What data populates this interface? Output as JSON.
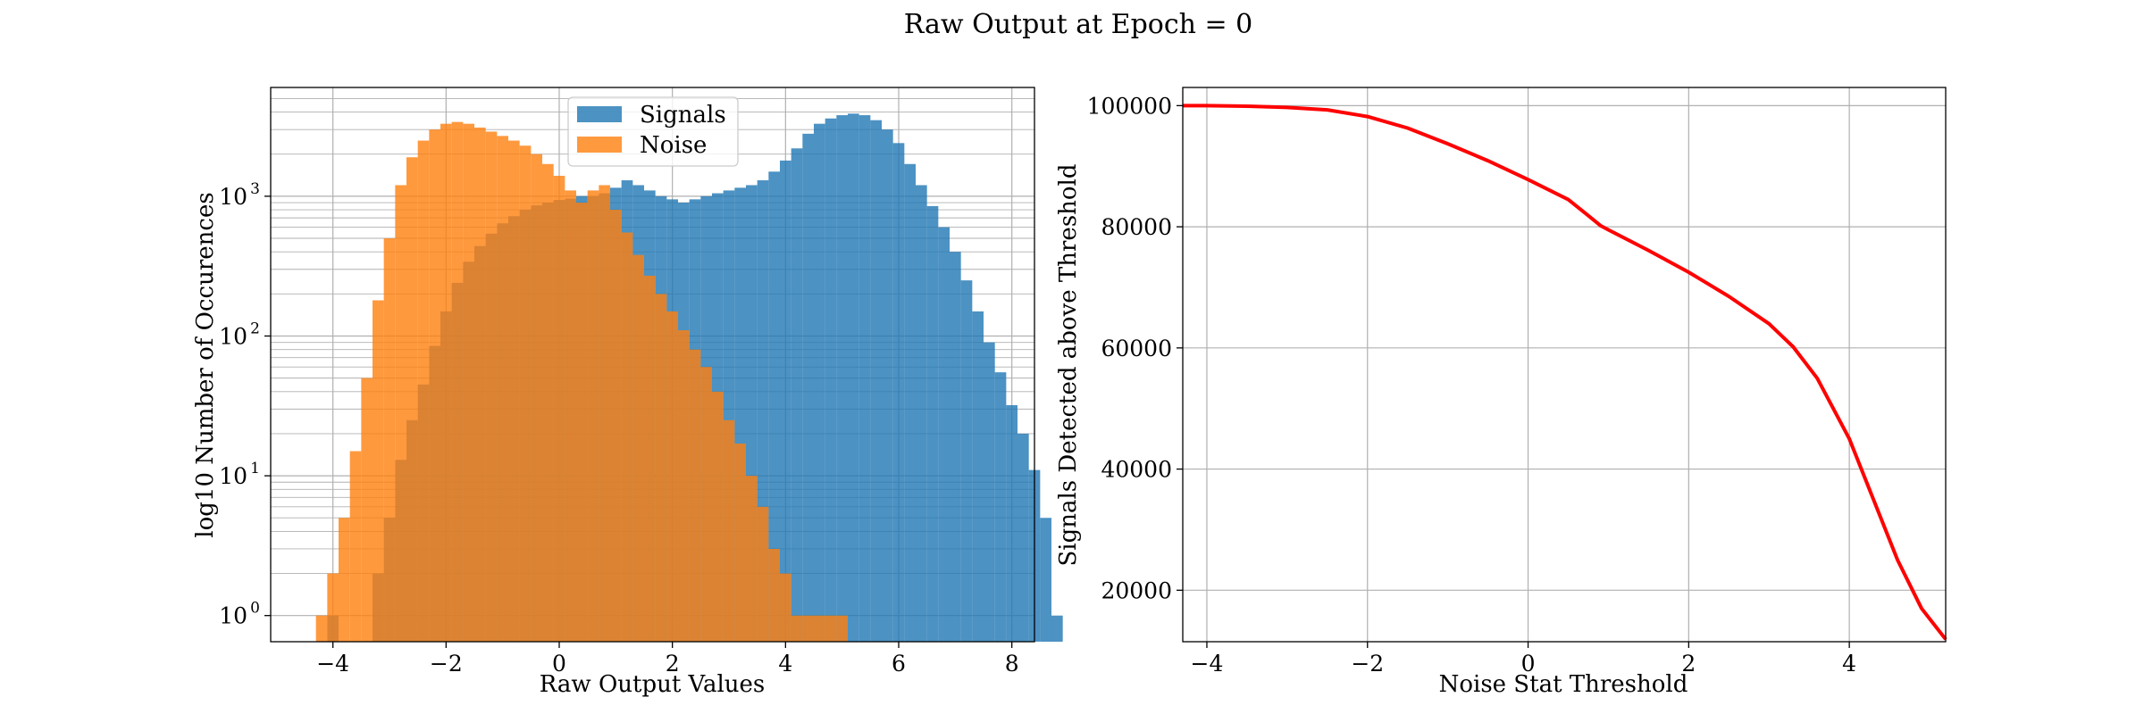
{
  "figure": {
    "suptitle": "Raw Output at Epoch = 0"
  },
  "chart_data": [
    {
      "type": "bar",
      "subtype": "overlaid-histogram",
      "title": "",
      "xlabel": "Raw Output Values",
      "ylabel": "log10 Number of Occurences",
      "xlim": [
        -5.1,
        8.4
      ],
      "ylim": [
        0.65,
        6000
      ],
      "yscale": "log",
      "grid": "on (major and minor)",
      "legend": "top-center",
      "xticks": [
        -4,
        -2,
        0,
        2,
        4,
        6,
        8
      ],
      "xtick_labels": [
        "−4",
        "−2",
        "0",
        "2",
        "4",
        "6",
        "8"
      ],
      "yticks": [
        1,
        10,
        100,
        1000
      ],
      "ytick_labels": [
        [
          "10",
          "0"
        ],
        [
          "10",
          "1"
        ],
        [
          "10",
          "2"
        ],
        [
          "10",
          "3"
        ]
      ],
      "bin_width": 0.2,
      "series": [
        {
          "name": "Signals",
          "color": "#1f77b4",
          "opacity": 0.8,
          "bin_start": -4.1,
          "values": [
            1,
            0,
            0,
            0,
            2,
            5,
            13,
            25,
            45,
            85,
            150,
            240,
            340,
            440,
            540,
            640,
            720,
            800,
            860,
            900,
            940,
            960,
            1000,
            1000,
            1050,
            1150,
            1300,
            1200,
            1100,
            1000,
            950,
            900,
            950,
            1000,
            1050,
            1100,
            1150,
            1200,
            1300,
            1500,
            1800,
            2200,
            2800,
            3300,
            3600,
            3800,
            3900,
            3800,
            3500,
            3000,
            2400,
            1700,
            1200,
            850,
            600,
            400,
            250,
            150,
            90,
            55,
            32,
            20,
            11,
            5,
            1
          ]
        },
        {
          "name": "Noise",
          "color": "#ff7f0e",
          "opacity": 0.8,
          "bin_start": -4.3,
          "values": [
            1,
            2,
            5,
            15,
            50,
            180,
            500,
            1200,
            1900,
            2500,
            3000,
            3300,
            3400,
            3300,
            3100,
            2900,
            2700,
            2500,
            2300,
            2000,
            1700,
            1400,
            1100,
            900,
            1100,
            1200,
            800,
            550,
            380,
            270,
            200,
            150,
            110,
            80,
            60,
            40,
            25,
            17,
            10,
            6,
            3,
            2,
            1,
            1,
            1,
            1,
            1
          ]
        }
      ]
    },
    {
      "type": "line",
      "title": "",
      "xlabel": "Noise Stat Threshold",
      "ylabel": "Signals Detected above Threshold",
      "xlim": [
        -4.3,
        5.2
      ],
      "ylim": [
        11500,
        103000
      ],
      "grid": "on",
      "xticks": [
        -4,
        -2,
        0,
        2,
        4
      ],
      "xtick_labels": [
        "−4",
        "−2",
        "0",
        "2",
        "4"
      ],
      "yticks": [
        20000,
        40000,
        60000,
        80000,
        100000
      ],
      "ytick_labels": [
        "20000",
        "40000",
        "60000",
        "80000",
        "100000"
      ],
      "series": [
        {
          "color": "#ff0000",
          "x": [
            -4.3,
            -4.0,
            -3.5,
            -3.0,
            -2.5,
            -2.0,
            -1.5,
            -1.0,
            -0.5,
            0.0,
            0.5,
            0.8,
            0.9,
            1.0,
            1.5,
            2.0,
            2.5,
            3.0,
            3.3,
            3.6,
            4.0,
            4.3,
            4.6,
            4.9,
            5.2
          ],
          "y": [
            100000,
            100000,
            99900,
            99700,
            99300,
            98200,
            96300,
            93700,
            90900,
            87800,
            84500,
            81300,
            80200,
            79500,
            76100,
            72500,
            68500,
            64000,
            60200,
            55000,
            45000,
            35000,
            25000,
            17000,
            11900
          ]
        }
      ]
    }
  ]
}
